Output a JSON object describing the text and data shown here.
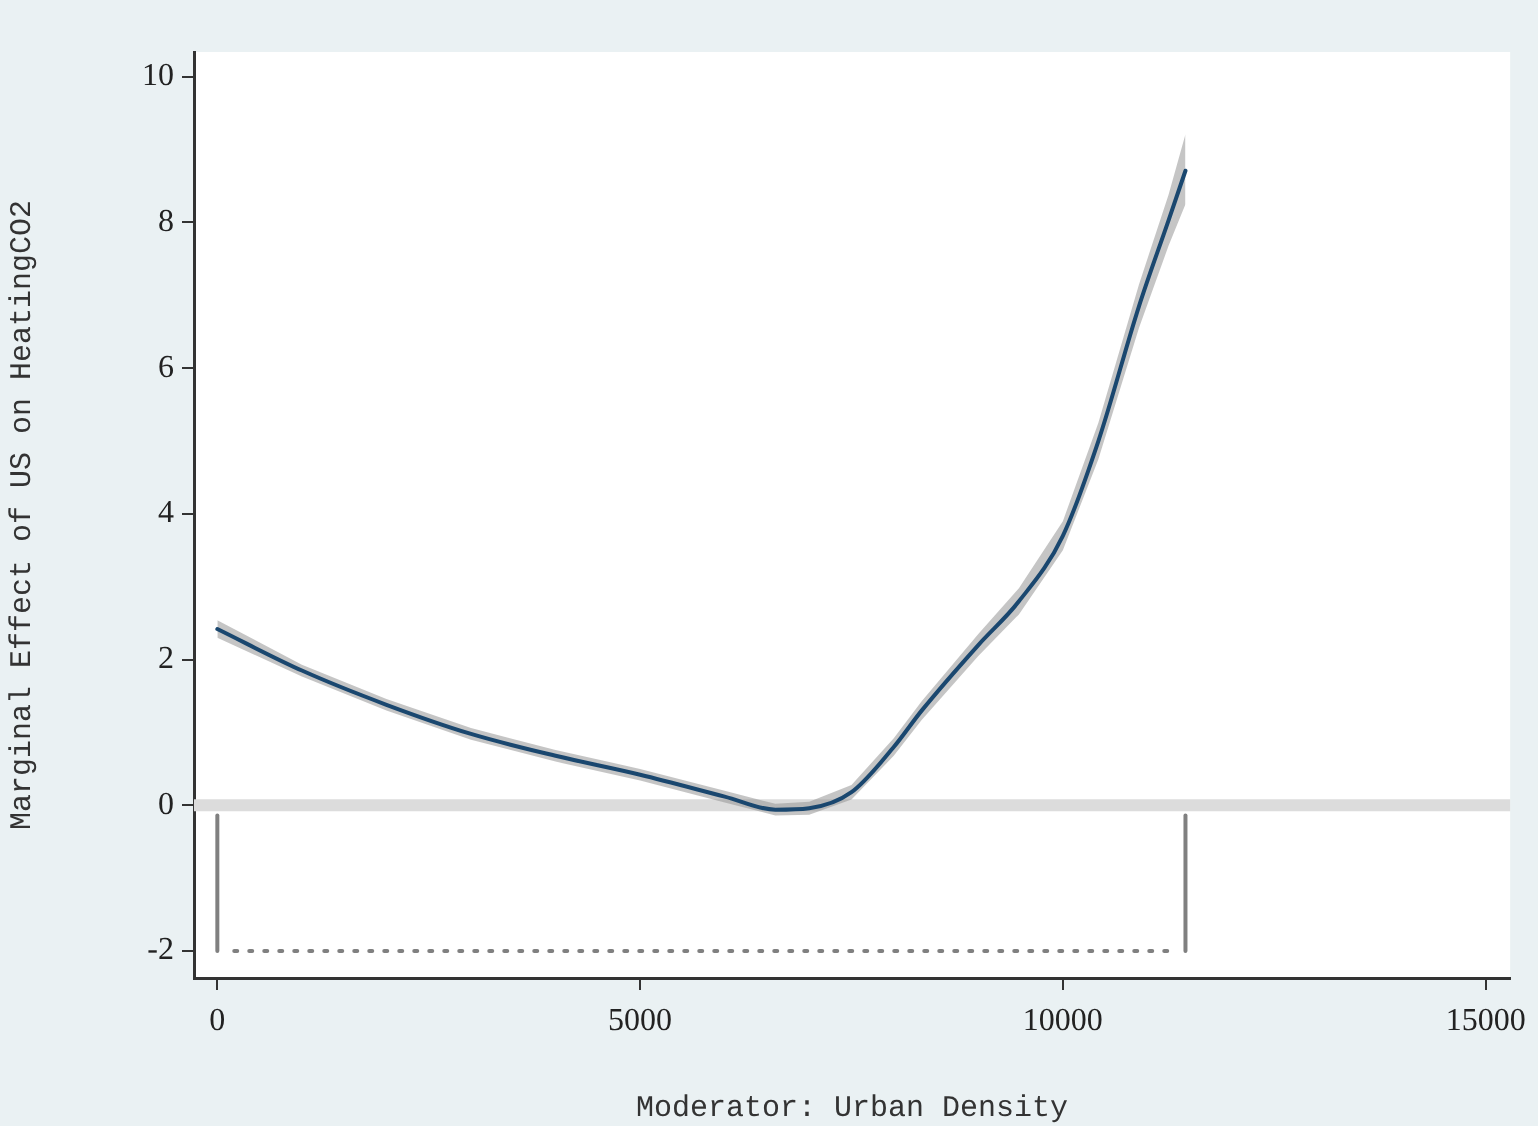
{
  "chart_data": {
    "type": "line",
    "xlabel": "Moderator: Urban Density",
    "ylabel": "Marginal Effect of US on HeatingCO2",
    "xlim": [
      -276,
      15290
    ],
    "xticks": [
      0,
      5000,
      10000,
      15000
    ],
    "ylim": [
      -2.37,
      10.34
    ],
    "yticks": [
      -2,
      0,
      2,
      4,
      6,
      8,
      10
    ],
    "grid": false,
    "legend": false,
    "marker": "none",
    "ref_lines": [
      {
        "axis": "y",
        "value": 0,
        "color": "#dcdcdc"
      }
    ],
    "series": [
      {
        "color": "#1a476f",
        "x": [
          0,
          1000,
          2000,
          3000,
          4000,
          5000,
          6000,
          6600,
          7000,
          7500,
          8000,
          8330,
          9000,
          9480,
          10000,
          10420,
          10900,
          11250,
          11450
        ],
        "values": [
          2.42,
          1.85,
          1.38,
          0.98,
          0.68,
          0.42,
          0.12,
          -0.06,
          -0.04,
          0.18,
          0.8,
          1.3,
          2.2,
          2.8,
          3.7,
          5.0,
          6.85,
          8.03,
          8.71
        ],
        "lower": [
          2.3,
          1.77,
          1.3,
          0.9,
          0.6,
          0.34,
          0.04,
          -0.14,
          -0.13,
          0.08,
          0.68,
          1.17,
          2.05,
          2.62,
          3.5,
          4.75,
          6.55,
          7.68,
          8.25
        ],
        "upper": [
          2.54,
          1.93,
          1.46,
          1.06,
          0.76,
          0.5,
          0.2,
          0.02,
          0.05,
          0.28,
          0.92,
          1.43,
          2.35,
          2.98,
          3.9,
          5.25,
          7.15,
          8.38,
          9.21
        ]
      },
      {
        "color": "#808080",
        "x": [
          0,
          0
        ],
        "values": [
          -2,
          -0.14
        ]
      },
      {
        "color": "#808080",
        "x": [
          11450,
          11450
        ],
        "values": [
          -2,
          -0.14
        ]
      },
      {
        "color": "#808080",
        "line_style": "dotted",
        "x": [
          200,
          11250
        ],
        "values": [
          -2,
          -2
        ]
      }
    ]
  }
}
